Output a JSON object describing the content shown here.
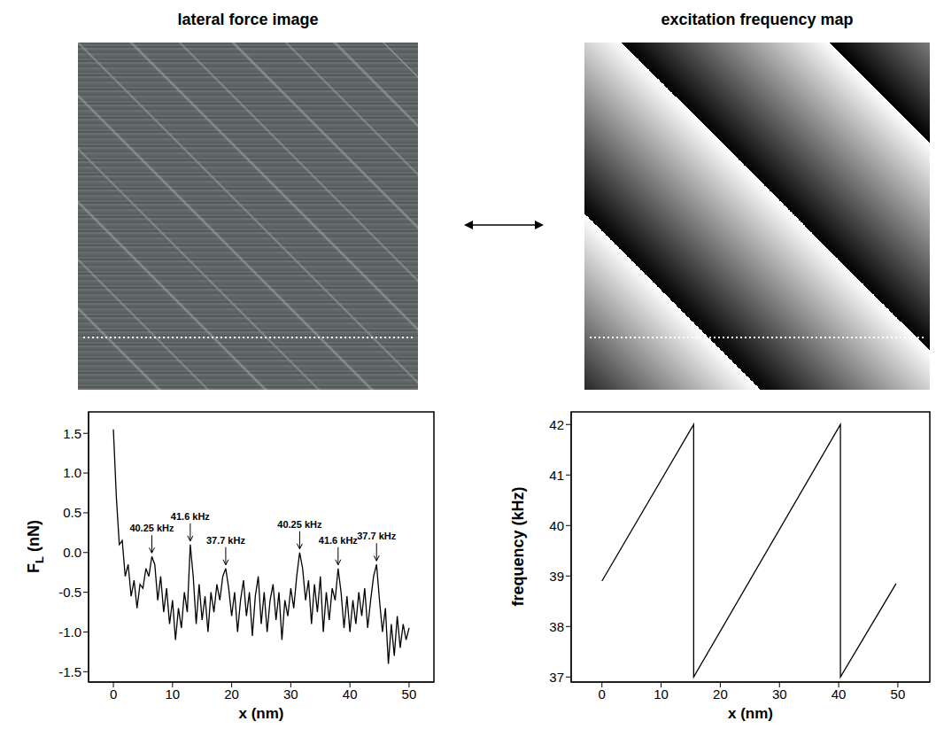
{
  "titles": {
    "left": "lateral force image",
    "right": "excitation frequency map"
  },
  "chart_data": [
    {
      "type": "line",
      "xlabel": "x (nm)",
      "ylabel": "FL (nN)",
      "color": "#000000",
      "x": [
        0,
        0.5,
        1,
        1.5,
        2,
        2.5,
        3,
        3.5,
        4,
        4.5,
        5,
        5.5,
        6,
        6.5,
        7,
        7.5,
        8,
        8.5,
        9,
        9.5,
        10,
        10.5,
        11,
        11.5,
        12,
        12.5,
        13,
        13.5,
        14,
        14.5,
        15,
        15.5,
        16,
        16.5,
        17,
        17.5,
        18,
        18.5,
        19,
        19.5,
        20,
        20.5,
        21,
        21.5,
        22,
        22.5,
        23,
        23.5,
        24,
        24.5,
        25,
        25.5,
        26,
        26.5,
        27,
        27.5,
        28,
        28.5,
        29,
        29.5,
        30,
        30.5,
        31,
        31.5,
        32,
        32.5,
        33,
        33.5,
        34,
        34.5,
        35,
        35.5,
        36,
        36.5,
        37,
        37.5,
        38,
        38.5,
        39,
        39.5,
        40,
        40.5,
        41,
        41.5,
        42,
        42.5,
        43,
        43.5,
        44,
        44.5,
        45,
        45.5,
        46,
        46.5,
        47,
        47.5,
        48,
        48.5,
        49,
        49.5,
        50
      ],
      "values": [
        1.55,
        0.7,
        0.1,
        0.15,
        -0.3,
        -0.15,
        -0.55,
        -0.35,
        -0.7,
        -0.4,
        -0.45,
        -0.2,
        -0.3,
        -0.05,
        -0.15,
        -0.6,
        -0.3,
        -0.75,
        -0.45,
        -0.9,
        -0.6,
        -1.1,
        -0.7,
        -0.95,
        -0.5,
        -0.75,
        0.1,
        -0.3,
        -0.9,
        -0.4,
        -0.85,
        -0.55,
        -1.0,
        -0.5,
        -0.75,
        -0.4,
        -0.6,
        -0.3,
        -0.2,
        -0.45,
        -0.8,
        -0.5,
        -1.0,
        -0.6,
        -0.35,
        -0.8,
        -0.5,
        -1.05,
        -0.55,
        -0.3,
        -0.9,
        -0.5,
        -1.0,
        -0.6,
        -0.4,
        -0.85,
        -0.5,
        -1.1,
        -0.6,
        -0.8,
        -0.45,
        -0.7,
        -0.3,
        0.0,
        -0.2,
        -0.6,
        -0.35,
        -0.9,
        -0.4,
        -0.75,
        -0.3,
        -1.0,
        -0.5,
        -0.85,
        -0.45,
        -0.6,
        -0.2,
        -0.5,
        -0.95,
        -0.55,
        -1.0,
        -0.6,
        -0.9,
        -0.5,
        -0.8,
        -0.45,
        -0.95,
        -0.6,
        -0.3,
        -0.15,
        -0.6,
        -1.0,
        -0.7,
        -1.4,
        -0.9,
        -1.3,
        -0.8,
        -1.2,
        -0.9,
        -1.1,
        -0.95
      ],
      "xlim": [
        -4.2,
        54.2
      ],
      "xticks": [
        0,
        10,
        20,
        30,
        40,
        50
      ],
      "ylim": [
        -1.63,
        1.77
      ],
      "yticks": [
        -1.5,
        {
          "value": -1,
          "label": "-1.0"
        },
        -0.5,
        {
          "value": 0,
          "label": "0.0"
        },
        0.5,
        {
          "value": 1,
          "label": "1.0"
        },
        1.5
      ],
      "annotations": [
        {
          "text": "40.25 kHz",
          "x": 6.5,
          "y": -0.05
        },
        {
          "text": "41.6 kHz",
          "x": 13,
          "y": 0.1
        },
        {
          "text": "37.7 kHz",
          "x": 19,
          "y": -0.2
        },
        {
          "text": "40.25 kHz",
          "x": 31.5,
          "y": 0.0
        },
        {
          "text": "41.6 kHz",
          "x": 38,
          "y": -0.2
        },
        {
          "text": "37.7 kHz",
          "x": 44.5,
          "y": -0.15
        }
      ]
    },
    {
      "type": "line",
      "xlabel": "x (nm)",
      "ylabel": "frequency (kHz)",
      "color": "#000000",
      "x": [
        0,
        15.5,
        15.5,
        40.3,
        40.3,
        49.7
      ],
      "values": [
        38.9,
        42,
        37,
        42,
        37,
        38.85
      ],
      "xlim": [
        -5.2,
        55.4
      ],
      "xticks": [
        0,
        10,
        20,
        30,
        40,
        50
      ],
      "ylim": [
        36.9,
        42.25
      ],
      "yticks": [
        37,
        38,
        39,
        40,
        41,
        42
      ]
    }
  ]
}
